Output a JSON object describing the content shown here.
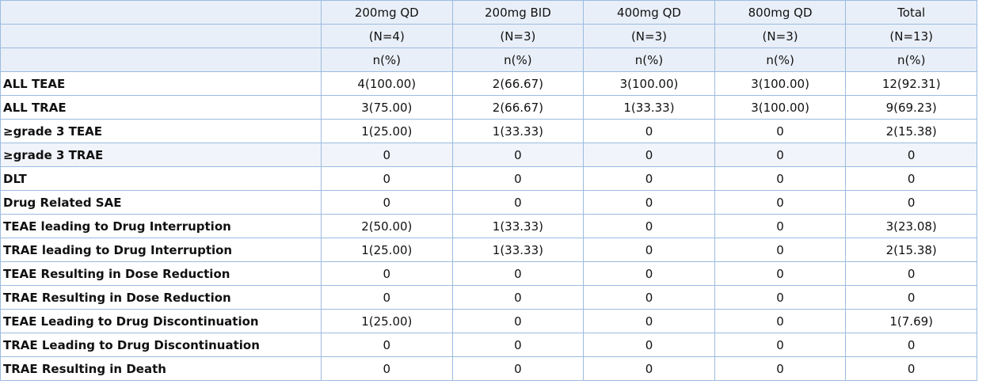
{
  "table": {
    "columns": [
      [
        "200mg QD",
        "(N=4)",
        "n(%)"
      ],
      [
        "200mg BID",
        "(N=3)",
        "n(%)"
      ],
      [
        "400mg QD",
        "(N=3)",
        "n(%)"
      ],
      [
        "800mg QD",
        "(N=3)",
        "n(%)"
      ],
      [
        "Total",
        "(N=13)",
        "n(%)"
      ]
    ],
    "rows": [
      [
        "ALL TEAE",
        "4(100.00)",
        "2(66.67)",
        "3(100.00)",
        "3(100.00)",
        "12(92.31)"
      ],
      [
        "ALL TRAE",
        "3(75.00)",
        "2(66.67)",
        "1(33.33)",
        "3(100.00)",
        "9(69.23)"
      ],
      [
        "≥grade 3 TEAE",
        "1(25.00)",
        "1(33.33)",
        "0",
        "0",
        "2(15.38)"
      ],
      [
        "≥grade 3 TRAE",
        "0",
        "0",
        "0",
        "0",
        "0"
      ],
      [
        "DLT",
        "0",
        "0",
        "0",
        "0",
        "0"
      ],
      [
        "Drug Related SAE",
        "0",
        "0",
        "0",
        "0",
        "0"
      ],
      [
        "TEAE leading to Drug Interruption",
        "2(50.00)",
        "1(33.33)",
        "0",
        "0",
        "3(23.08)"
      ],
      [
        "TRAE leading to Drug Interruption",
        "1(25.00)",
        "1(33.33)",
        "0",
        "0",
        "2(15.38)"
      ],
      [
        "TEAE Resulting in Dose Reduction",
        "0",
        "0",
        "0",
        "0",
        "0"
      ],
      [
        "TRAE Resulting in Dose Reduction",
        "0",
        "0",
        "0",
        "0",
        "0"
      ],
      [
        "TEAE Leading to Drug Discontinuation",
        "1(25.00)",
        "0",
        "0",
        "0",
        "1(7.69)"
      ],
      [
        "TRAE Leading to Drug Discontinuation",
        "0",
        "0",
        "0",
        "0",
        "0"
      ],
      [
        "TRAE Resulting in Death",
        "0",
        "0",
        "0",
        "0",
        "0"
      ]
    ]
  }
}
